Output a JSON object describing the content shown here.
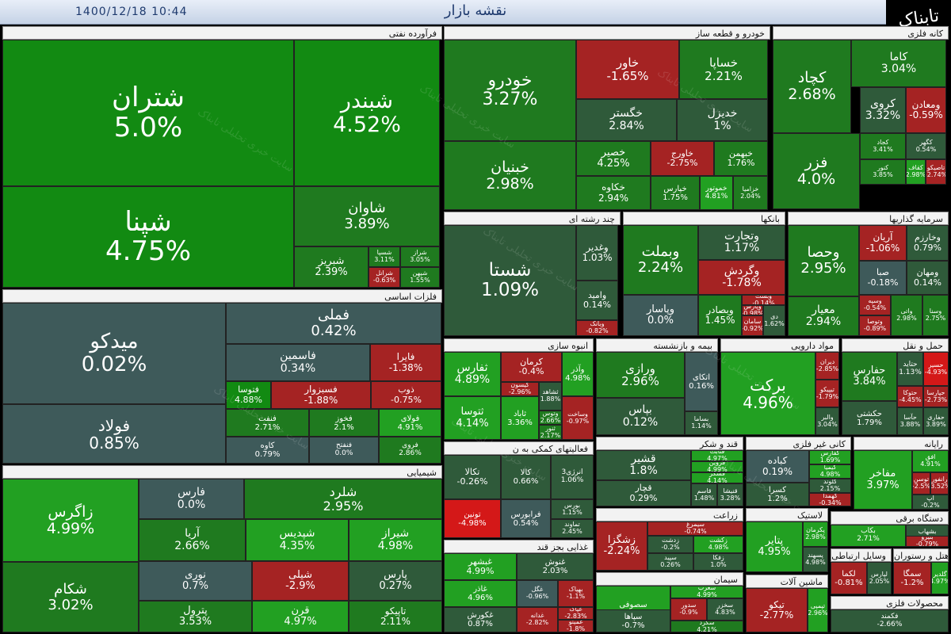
{
  "header": {
    "title": "نقشه بازار",
    "datetime": "1400/12/18   10:44"
  },
  "brand": {
    "logo_text": "تابناک"
  },
  "watermark": {
    "text": "سایت خبری تحلیلی تابناک"
  },
  "sectors": [
    {
      "id": "oil",
      "title": "فرآورده نفتی",
      "tiles": [
        {
          "n": "شتران",
          "v": "5.0%"
        },
        {
          "n": "شبندر",
          "v": "4.52%"
        },
        {
          "n": "شپنا",
          "v": "4.75%"
        },
        {
          "n": "شاوان",
          "v": "3.89%"
        },
        {
          "n": "شبریز",
          "v": "2.39%"
        },
        {
          "n": "شسپا",
          "v": "3.11%"
        },
        {
          "n": "شراز",
          "v": "3.05%"
        },
        {
          "n": "شرانل",
          "v": "-0.63%"
        },
        {
          "n": "شفن",
          "v": "2.61%"
        },
        {
          "n": "شپهن",
          "v": "1.55%"
        }
      ]
    },
    {
      "id": "auto",
      "title": "خودرو و قطعه ساز",
      "tiles": [
        {
          "n": "خودرو",
          "v": "3.27%"
        },
        {
          "n": "خاور",
          "v": "-1.65%"
        },
        {
          "n": "خساپا",
          "v": "2.21%"
        },
        {
          "n": "خگستر",
          "v": "2.84%"
        },
        {
          "n": "خبنیان",
          "v": "2.98%"
        },
        {
          "n": "خدیزل",
          "v": "1%"
        },
        {
          "n": "خصیر",
          "v": "4.25%"
        },
        {
          "n": "خاورج",
          "v": "-2.75%"
        },
        {
          "n": "خبهمن",
          "v": "1.76%"
        },
        {
          "n": "خکاوه",
          "v": "2.94%"
        },
        {
          "n": "خپارس",
          "v": "1.75%"
        },
        {
          "n": "خموتور",
          "v": "4.81%"
        },
        {
          "n": "خزامیا",
          "v": "2.04%"
        }
      ]
    },
    {
      "id": "metal",
      "title": "کانه فلزی",
      "tiles": [
        {
          "n": "کاما",
          "v": "3.04%"
        },
        {
          "n": "کچاد",
          "v": "2.68%"
        },
        {
          "n": "کروی",
          "v": "3.32%"
        },
        {
          "n": "ومعادن",
          "v": "-0.59%"
        },
        {
          "n": "فزر",
          "v": "4.0%"
        },
        {
          "n": "کجاد",
          "v": "3.41%"
        },
        {
          "n": "کگهر",
          "v": "0.54%"
        },
        {
          "n": "کنور",
          "v": "3.85%"
        },
        {
          "n": "کقاف",
          "v": "2.98%"
        },
        {
          "n": "تاصیکو",
          "v": "-2.74%"
        }
      ]
    },
    {
      "id": "multi",
      "title": "چند رشته ای",
      "tiles": [
        {
          "n": "شستا",
          "v": "1.09%"
        },
        {
          "n": "وغدیر",
          "v": "1.03%"
        },
        {
          "n": "وامید",
          "v": "0.14%"
        },
        {
          "n": "وبانک",
          "v": "-0.82%"
        }
      ]
    },
    {
      "id": "banks",
      "title": "بانکها",
      "tiles": [
        {
          "n": "وبملت",
          "v": "2.24%"
        },
        {
          "n": "وتجارت",
          "v": "1.17%"
        },
        {
          "n": "وگردش",
          "v": "-1.78%"
        },
        {
          "n": "وبصادر",
          "v": "1.45%"
        },
        {
          "n": "وپاسار",
          "v": "0.0%"
        },
        {
          "n": "وبست",
          "v": "-0.14%"
        },
        {
          "n": "وپارس",
          "v": "-0.98%"
        },
        {
          "n": "سامان",
          "v": "-0.92%"
        },
        {
          "n": "دی",
          "v": "1.62%"
        }
      ]
    },
    {
      "id": "invest",
      "title": "سرمایه گذاریها",
      "tiles": [
        {
          "n": "وحصا",
          "v": "2.95%"
        },
        {
          "n": "آریان",
          "v": "-1.06%"
        },
        {
          "n": "وخارزم",
          "v": "0.79%"
        },
        {
          "n": "صبا",
          "v": "-0.18%"
        },
        {
          "n": "ومهان",
          "v": "0.14%"
        },
        {
          "n": "معیار",
          "v": "2.94%"
        },
        {
          "n": "وسپه",
          "v": "-0.54%"
        },
        {
          "n": "وتوصا",
          "v": "-0.89%"
        },
        {
          "n": "واتی",
          "v": "2.98%"
        },
        {
          "n": "وسنا",
          "v": "2.75%"
        }
      ]
    },
    {
      "id": "basemetal",
      "title": "فلزات اساسی",
      "tiles": [
        {
          "n": "میدکو",
          "v": "0.02%"
        },
        {
          "n": "فملی",
          "v": "0.42%"
        },
        {
          "n": "فاسمین",
          "v": "0.34%"
        },
        {
          "n": "فایرا",
          "v": "-1.38%"
        },
        {
          "n": "فتوسا",
          "v": "4.88%"
        },
        {
          "n": "فسبزوار",
          "v": "-1.88%"
        },
        {
          "n": "ذوب",
          "v": "-0.75%"
        },
        {
          "n": "فولاد",
          "v": "0.85%"
        },
        {
          "n": "فنفت",
          "v": "2.71%"
        },
        {
          "n": "فخوز",
          "v": "2.1%"
        },
        {
          "n": "فولای",
          "v": "4.91%"
        },
        {
          "n": "کاوه",
          "v": "0.79%"
        },
        {
          "n": "فنفتح",
          "v": "0.0%"
        },
        {
          "n": "فروی",
          "v": "2.86%"
        }
      ]
    },
    {
      "id": "cement",
      "title": "انبوه سازی",
      "tiles": [
        {
          "n": "ثفارس",
          "v": "4.89%"
        },
        {
          "n": "کرمان",
          "v": "-0.4%"
        },
        {
          "n": "وآذر",
          "v": "4.98%"
        },
        {
          "n": "کیسون",
          "v": "-2.96%"
        },
        {
          "n": "ثشاهد",
          "v": "1.88%"
        },
        {
          "n": "ثتوسا",
          "v": "4.14%"
        },
        {
          "n": "ثاباد",
          "v": "3.36%"
        },
        {
          "n": "وتوس",
          "v": "2.66%"
        },
        {
          "n": "ثنور",
          "v": "2.17%"
        },
        {
          "n": "وساخت",
          "v": "-0.97%"
        }
      ]
    },
    {
      "id": "insurance",
      "title": "بیمه و بازنشسته",
      "tiles": [
        {
          "n": "ورازی",
          "v": "2.96%"
        },
        {
          "n": "اتکای",
          "v": "0.16%"
        },
        {
          "n": "بپاس",
          "v": "0.12%"
        },
        {
          "n": "بساما",
          "v": "1.14%"
        }
      ]
    },
    {
      "id": "pharma",
      "title": "مواد دارویی",
      "tiles": [
        {
          "n": "برکت",
          "v": "4.96%"
        },
        {
          "n": "دیران",
          "v": "-2.85%"
        },
        {
          "n": "تیپیکو",
          "v": "-1.79%"
        },
        {
          "n": "والبر",
          "v": "3.04%"
        }
      ]
    },
    {
      "id": "transport",
      "title": "حمل و نقل",
      "tiles": [
        {
          "n": "حفارس",
          "v": "3.84%"
        },
        {
          "n": "حتاید",
          "v": "1.13%"
        },
        {
          "n": "حسیر",
          "v": "-4.93%"
        },
        {
          "n": "حتوکا",
          "v": "-4.45%"
        },
        {
          "n": "حپارسا",
          "v": "-2.73%"
        },
        {
          "n": "حکشتی",
          "v": "1.79%"
        },
        {
          "n": "حآسا",
          "v": "3.88%"
        },
        {
          "n": "حفاری",
          "v": "3.89%"
        }
      ]
    },
    {
      "id": "chem",
      "title": "شیمیایی",
      "tiles": [
        {
          "n": "زاگرس",
          "v": "4.99%"
        },
        {
          "n": "فارس",
          "v": "0.0%"
        },
        {
          "n": "شلرد",
          "v": "2.95%"
        },
        {
          "n": "آریا",
          "v": "2.66%"
        },
        {
          "n": "شپدیس",
          "v": "4.35%"
        },
        {
          "n": "شیراز",
          "v": "4.98%"
        },
        {
          "n": "شکام",
          "v": "3.02%"
        },
        {
          "n": "نوری",
          "v": "0.7%"
        },
        {
          "n": "شیلی",
          "v": "-2.9%"
        },
        {
          "n": "پارس",
          "v": "0.27%"
        },
        {
          "n": "پترول",
          "v": "3.53%"
        },
        {
          "n": "قرن",
          "v": "4.97%"
        },
        {
          "n": "تاپیکو",
          "v": "2.11%"
        }
      ]
    },
    {
      "id": "aux",
      "title": "فعالیتهای کمکی به ن",
      "tiles": [
        {
          "n": "تکالا",
          "v": "-0.26%"
        },
        {
          "n": "کالا",
          "v": "0.66%"
        },
        {
          "n": "انرژی3",
          "v": "1.06%"
        },
        {
          "n": "تونین",
          "v": "-4.98%"
        },
        {
          "n": "فرابورس",
          "v": "0.54%"
        },
        {
          "n": "بورس",
          "v": "1.15%"
        },
        {
          "n": "تماوند",
          "v": "2.45%"
        }
      ]
    },
    {
      "id": "food",
      "title": "غذایی بجز قند",
      "tiles": [
        {
          "n": "غبشهر",
          "v": "4.99%"
        },
        {
          "n": "غنوش",
          "v": "2.03%"
        },
        {
          "n": "غاذر",
          "v": "4.96%"
        },
        {
          "n": "غگل",
          "v": "-0.96%"
        },
        {
          "n": "بهپاک",
          "v": "-1.1%"
        },
        {
          "n": "غکورش",
          "v": "0.87%"
        },
        {
          "n": "غدانه",
          "v": "-2.82%"
        },
        {
          "n": "غپاک",
          "v": "-2.83%"
        },
        {
          "n": "غمینو",
          "v": "-1.8%"
        }
      ]
    },
    {
      "id": "sugar",
      "title": "قند و شکر",
      "tiles": [
        {
          "n": "قشیر",
          "v": "1.8%"
        },
        {
          "n": "قچار",
          "v": "0.29%"
        },
        {
          "n": "قثابت",
          "v": "4.97%"
        },
        {
          "n": "قزوین",
          "v": "4.99%"
        },
        {
          "n": "قشکر",
          "v": "4.14%"
        },
        {
          "n": "قاسم",
          "v": "1.48%"
        },
        {
          "n": "قنیشا",
          "v": "3.28%"
        }
      ]
    },
    {
      "id": "nonmetal",
      "title": "کانی غیر فلزی",
      "tiles": [
        {
          "n": "کباده",
          "v": "0.19%"
        },
        {
          "n": "کفارس",
          "v": "1.69%"
        },
        {
          "n": "کیمیا",
          "v": "4.98%"
        },
        {
          "n": "کسرا",
          "v": "1.2%"
        },
        {
          "n": "کلوند",
          "v": "2.15%"
        },
        {
          "n": "کهمدا",
          "v": "-0.34%"
        }
      ]
    },
    {
      "id": "pharma2",
      "title": "رایانه",
      "tiles": [
        {
          "n": "مفاخر",
          "v": "3.97%"
        },
        {
          "n": "افق",
          "v": "4.91%"
        },
        {
          "n": "توسن",
          "v": "-2.5%"
        },
        {
          "n": "رانفور",
          "v": "-3.52%"
        },
        {
          "n": "آپ",
          "v": "-0.2%"
        }
      ]
    },
    {
      "id": "agri",
      "title": "زراعت",
      "tiles": [
        {
          "n": "زشگزا",
          "v": "-2.24%"
        },
        {
          "n": "سیمرغ",
          "v": "-0.74%"
        },
        {
          "n": "زدشت",
          "v": "-0.2%"
        },
        {
          "n": "زکشت",
          "v": "4.98%"
        },
        {
          "n": "سپید",
          "v": "0.26%"
        },
        {
          "n": "زفکا",
          "v": "1.0%"
        }
      ]
    },
    {
      "id": "cement2",
      "title": "سیمان",
      "tiles": [
        {
          "n": "سصوفی",
          "v": "5.0%"
        },
        {
          "n": "سغرب",
          "v": "4.99%"
        },
        {
          "n": "سپاها",
          "v": "-0.7%"
        },
        {
          "n": "سدور",
          "v": "-0.9%"
        },
        {
          "n": "سخزر",
          "v": "4.83%"
        },
        {
          "n": "سکرد",
          "v": "4.21%"
        }
      ]
    },
    {
      "id": "plastic",
      "title": "لاستیک",
      "tiles": [
        {
          "n": "پتایر",
          "v": "4.95%"
        },
        {
          "n": "پکرمان",
          "v": "2.98%"
        },
        {
          "n": "پسهند",
          "v": "4.98%"
        }
      ]
    },
    {
      "id": "electric",
      "title": "دستگاه برقی",
      "tiles": [
        {
          "n": "بکاب",
          "v": "2.71%"
        },
        {
          "n": "بشهاب",
          "v": "-1.15%"
        },
        {
          "n": "بنیرو",
          "v": "-0.79%"
        }
      ]
    },
    {
      "id": "machine",
      "title": "ماشین آلات",
      "tiles": [
        {
          "n": "تیکو",
          "v": "-2.77%"
        },
        {
          "n": "تپمپی",
          "v": "2.96%"
        }
      ]
    },
    {
      "id": "telecom",
      "title": "وسایل ارتباطی",
      "tiles": [
        {
          "n": "لکما",
          "v": "-0.81%"
        },
        {
          "n": "لپارس",
          "v": "2.05%"
        }
      ]
    },
    {
      "id": "hotel",
      "title": "هتل و رستوران",
      "tiles": [
        {
          "n": "سمگا",
          "v": "-1.2%"
        },
        {
          "n": "گلدیر",
          "v": "4.97%"
        }
      ]
    },
    {
      "id": "metalprod",
      "title": "محصولات فلزی",
      "tiles": [
        {
          "n": "فکمند",
          "v": "-2.66%"
        }
      ]
    }
  ]
}
